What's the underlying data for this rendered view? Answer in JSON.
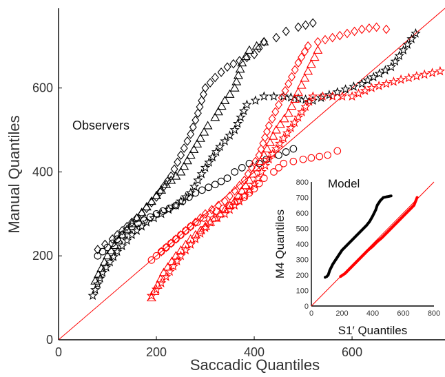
{
  "chart_data": [
    {
      "type": "scatter",
      "title": "",
      "xlabel": "Saccadic Quantiles",
      "ylabel": "Manual Quantiles",
      "xlim": [
        0,
        790
      ],
      "ylim": [
        0,
        790
      ],
      "x_ticks": [
        0,
        200,
        400,
        600
      ],
      "y_ticks": [
        0,
        200,
        400,
        600
      ],
      "annotation": "Observers",
      "reference_line": "y = x",
      "grid": false,
      "colors": {
        "group_1": "#000000",
        "group_2": "#ff0000",
        "reference": "#ff0000"
      },
      "marker_shapes": [
        "circle",
        "triangle",
        "diamond",
        "star"
      ],
      "series": [
        {
          "color": "#000000",
          "marker": "diamond",
          "x": [
            80,
            110,
            140,
            170,
            200,
            230,
            250,
            270,
            285,
            300,
            320,
            345,
            370,
            400,
            420,
            445,
            465,
            490,
            520
          ],
          "y": [
            215,
            240,
            270,
            300,
            340,
            390,
            440,
            490,
            540,
            600,
            625,
            650,
            665,
            680,
            710,
            720,
            735,
            745,
            755
          ]
        },
        {
          "color": "#000000",
          "marker": "triangle",
          "x": [
            75,
            100,
            130,
            160,
            190,
            220,
            250,
            270,
            290,
            305,
            320,
            340,
            360,
            375,
            390,
            420
          ],
          "y": [
            140,
            200,
            250,
            290,
            330,
            370,
            400,
            440,
            480,
            510,
            530,
            570,
            600,
            660,
            690,
            710
          ]
        },
        {
          "color": "#000000",
          "marker": "star",
          "x": [
            70,
            90,
            120,
            150,
            180,
            210,
            240,
            270,
            300,
            330,
            360,
            385,
            420,
            460,
            520,
            570,
            620,
            680,
            730
          ],
          "y": [
            105,
            160,
            210,
            250,
            280,
            300,
            320,
            350,
            410,
            460,
            500,
            560,
            580,
            580,
            570,
            590,
            610,
            650,
            730
          ]
        },
        {
          "color": "#000000",
          "marker": "circle",
          "x": [
            80,
            110,
            150,
            200,
            240,
            280,
            320,
            345,
            360,
            375,
            390,
            410,
            425,
            450,
            480
          ],
          "y": [
            200,
            230,
            270,
            300,
            320,
            350,
            370,
            385,
            400,
            410,
            420,
            420,
            430,
            440,
            455
          ]
        },
        {
          "color": "#ff0000",
          "marker": "diamond",
          "x": [
            210,
            240,
            270,
            300,
            340,
            380,
            410,
            430,
            450,
            470,
            490,
            510,
            530,
            560,
            590,
            620,
            650,
            670
          ],
          "y": [
            210,
            240,
            270,
            300,
            330,
            380,
            440,
            510,
            560,
            610,
            660,
            700,
            710,
            720,
            730,
            740,
            745,
            740
          ]
        },
        {
          "color": "#ff0000",
          "marker": "triangle",
          "x": [
            190,
            215,
            240,
            270,
            300,
            330,
            360,
            390,
            420,
            445,
            470,
            490,
            510,
            530
          ],
          "y": [
            100,
            160,
            200,
            240,
            270,
            300,
            330,
            380,
            440,
            500,
            540,
            590,
            640,
            690
          ]
        },
        {
          "color": "#ff0000",
          "marker": "star",
          "x": [
            190,
            220,
            250,
            280,
            310,
            340,
            370,
            400,
            430,
            460,
            490,
            520,
            560,
            600,
            640,
            700,
            780
          ],
          "y": [
            105,
            150,
            200,
            240,
            280,
            300,
            330,
            370,
            430,
            480,
            530,
            580,
            580,
            580,
            600,
            620,
            640
          ]
        },
        {
          "color": "#ff0000",
          "marker": "circle",
          "x": [
            190,
            230,
            270,
            310,
            350,
            380,
            400,
            420,
            440,
            460,
            500,
            550,
            570
          ],
          "y": [
            190,
            230,
            270,
            300,
            320,
            340,
            360,
            385,
            400,
            420,
            430,
            440,
            450
          ]
        }
      ]
    },
    {
      "type": "scatter",
      "title": "",
      "xlabel": "S1′ Quantiles",
      "ylabel": "M4 Quantiles",
      "xlim": [
        0,
        800
      ],
      "ylim": [
        0,
        800
      ],
      "x_ticks": [
        0,
        200,
        400,
        600,
        800
      ],
      "y_ticks": [
        0,
        100,
        200,
        300,
        400,
        500,
        600,
        700,
        800
      ],
      "annotation": "Model",
      "reference_line": "y = x",
      "grid": false,
      "series": [
        {
          "color": "#000000",
          "marker": "dot",
          "x": [
            90,
            100,
            110,
            120,
            140,
            160,
            180,
            200,
            220,
            240,
            260,
            280,
            300,
            320,
            340,
            360,
            380,
            400,
            410,
            420,
            430,
            450,
            470,
            520
          ],
          "y": [
            185,
            190,
            200,
            230,
            270,
            300,
            330,
            360,
            380,
            400,
            420,
            440,
            460,
            480,
            500,
            520,
            545,
            580,
            600,
            620,
            650,
            680,
            700,
            710
          ]
        },
        {
          "color": "#ff0000",
          "marker": "dot",
          "x": [
            190,
            220,
            250,
            280,
            310,
            340,
            370,
            400,
            430,
            460,
            490,
            520,
            550,
            580,
            610,
            640,
            670,
            690
          ],
          "y": [
            190,
            210,
            240,
            270,
            300,
            330,
            360,
            385,
            415,
            440,
            470,
            500,
            530,
            560,
            590,
            620,
            650,
            700
          ]
        }
      ]
    }
  ]
}
